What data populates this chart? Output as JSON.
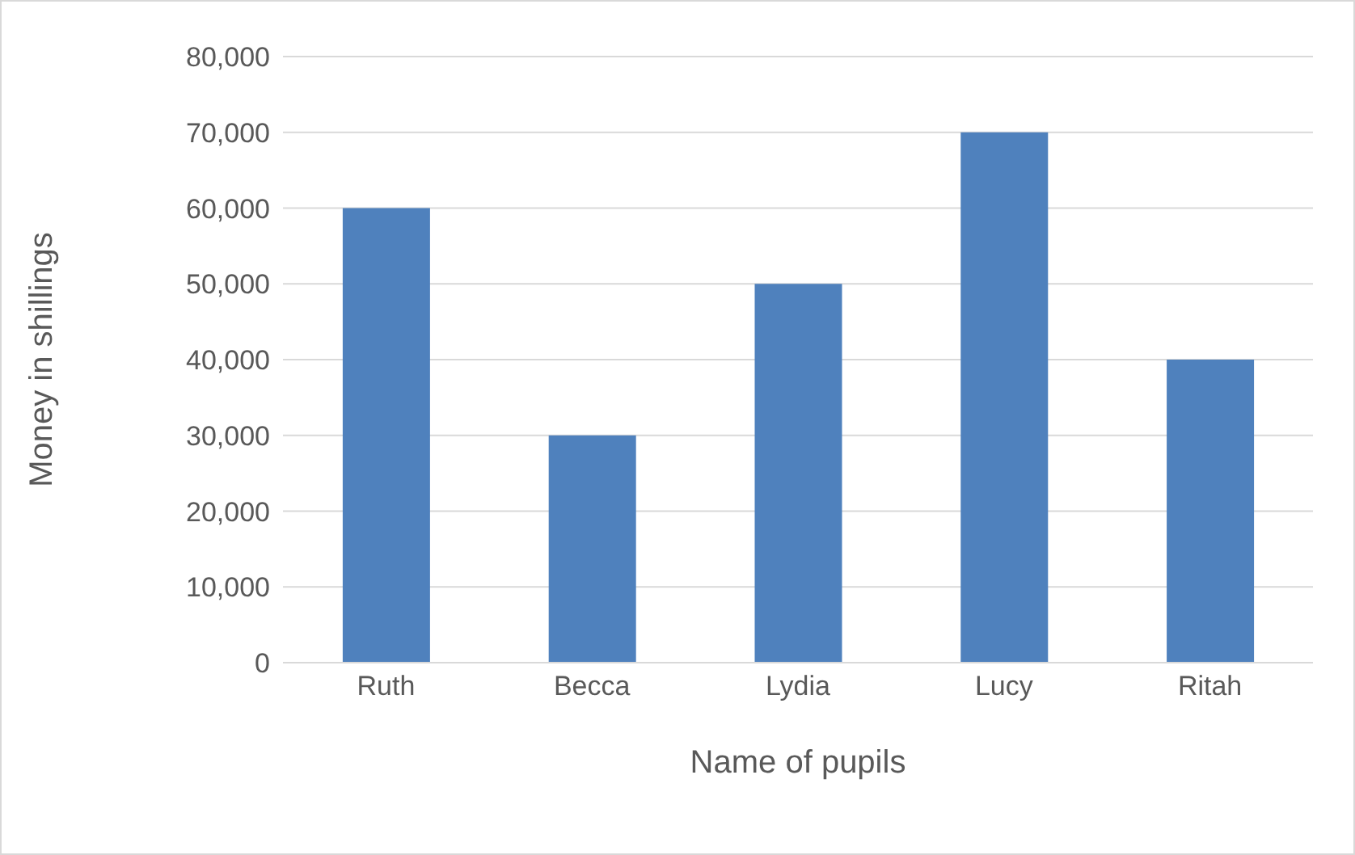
{
  "chart_data": {
    "type": "bar",
    "xlabel": "Name of pupils",
    "ylabel": "Money in shillings",
    "categories": [
      "Ruth",
      "Becca",
      "Lydia",
      "Lucy",
      "Ritah"
    ],
    "values": [
      60000,
      30000,
      50000,
      70000,
      40000
    ],
    "color": "#4f81bd",
    "ylim": [
      0,
      80000
    ],
    "yticks": [
      {
        "value": 0,
        "label": "0"
      },
      {
        "value": 10000,
        "label": "10,000"
      },
      {
        "value": 20000,
        "label": "20,000"
      },
      {
        "value": 30000,
        "label": "30,000"
      },
      {
        "value": 40000,
        "label": "40,000"
      },
      {
        "value": 50000,
        "label": "50,000"
      },
      {
        "value": 60000,
        "label": "60,000"
      },
      {
        "value": 70000,
        "label": "70,000"
      },
      {
        "value": 80000,
        "label": "80,000"
      }
    ],
    "grid": "y",
    "legend": false
  }
}
